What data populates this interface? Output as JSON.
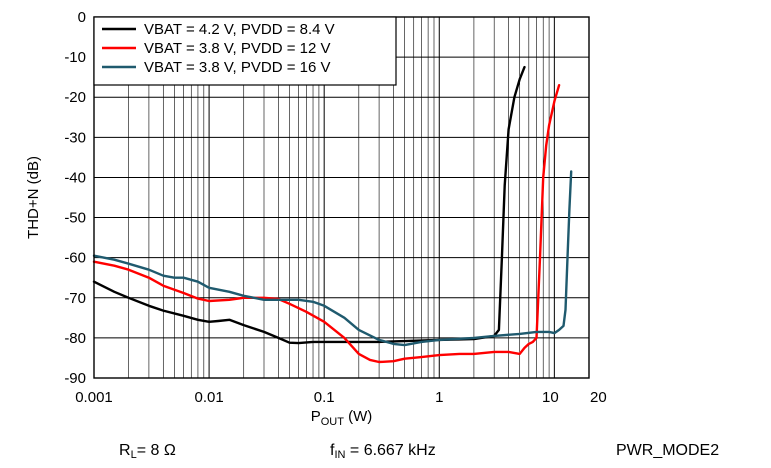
{
  "chart_data": {
    "type": "line",
    "xscale": "log",
    "xlim": [
      0.001,
      20
    ],
    "ylim": [
      -90,
      0
    ],
    "xlabel": "P",
    "xlabel_sub": "OUT",
    "xlabel_unit": " (W)",
    "ylabel": "THD+N (dB)",
    "x_ticks": [
      {
        "value": 0.001,
        "label": "0.001"
      },
      {
        "value": 0.01,
        "label": "0.01"
      },
      {
        "value": 0.1,
        "label": "0.1"
      },
      {
        "value": 1,
        "label": "1"
      },
      {
        "value": 10,
        "label": "10"
      },
      {
        "value": 20,
        "label": "20"
      }
    ],
    "y_ticks": [
      0,
      -10,
      -20,
      -30,
      -40,
      -50,
      -60,
      -70,
      -80,
      -90
    ],
    "grid": true,
    "legend_position": "top-left",
    "series": [
      {
        "name": "VBAT = 4.2 V, PVDD = 8.4 V",
        "color": "#000000",
        "points": [
          [
            0.001,
            -66
          ],
          [
            0.0015,
            -68.5
          ],
          [
            0.002,
            -70
          ],
          [
            0.003,
            -72
          ],
          [
            0.004,
            -73.2
          ],
          [
            0.006,
            -74.5
          ],
          [
            0.008,
            -75.5
          ],
          [
            0.01,
            -76
          ],
          [
            0.012,
            -75.8
          ],
          [
            0.015,
            -75.5
          ],
          [
            0.02,
            -76.8
          ],
          [
            0.03,
            -78.5
          ],
          [
            0.04,
            -80
          ],
          [
            0.05,
            -81.2
          ],
          [
            0.06,
            -81.3
          ],
          [
            0.08,
            -81
          ],
          [
            0.1,
            -81
          ],
          [
            0.15,
            -81
          ],
          [
            0.2,
            -81
          ],
          [
            0.3,
            -81
          ],
          [
            0.5,
            -80.8
          ],
          [
            1,
            -80.5
          ],
          [
            2,
            -80.3
          ],
          [
            3,
            -79.5
          ],
          [
            3.3,
            -78
          ],
          [
            3.5,
            -60
          ],
          [
            3.7,
            -42
          ],
          [
            4,
            -28
          ],
          [
            4.5,
            -20
          ],
          [
            5,
            -15.5
          ],
          [
            5.5,
            -12.5
          ]
        ]
      },
      {
        "name": "VBAT = 3.8 V, PVDD = 12 V",
        "color": "#ff0000",
        "points": [
          [
            0.001,
            -61
          ],
          [
            0.0015,
            -62
          ],
          [
            0.002,
            -63
          ],
          [
            0.003,
            -65
          ],
          [
            0.004,
            -67
          ],
          [
            0.006,
            -68.8
          ],
          [
            0.008,
            -70.2
          ],
          [
            0.01,
            -70.8
          ],
          [
            0.015,
            -70.5
          ],
          [
            0.02,
            -70
          ],
          [
            0.03,
            -70
          ],
          [
            0.04,
            -70.3
          ],
          [
            0.05,
            -71.5
          ],
          [
            0.07,
            -73.5
          ],
          [
            0.1,
            -76
          ],
          [
            0.15,
            -80
          ],
          [
            0.2,
            -84
          ],
          [
            0.25,
            -85.5
          ],
          [
            0.3,
            -86
          ],
          [
            0.4,
            -85.8
          ],
          [
            0.5,
            -85.2
          ],
          [
            0.7,
            -84.8
          ],
          [
            1,
            -84.3
          ],
          [
            1.5,
            -84
          ],
          [
            2,
            -84
          ],
          [
            3,
            -83.5
          ],
          [
            4,
            -83.5
          ],
          [
            5,
            -84
          ],
          [
            5.5,
            -82.5
          ],
          [
            6,
            -81.5
          ],
          [
            6.5,
            -81
          ],
          [
            7,
            -80
          ],
          [
            7.5,
            -60
          ],
          [
            8,
            -40
          ],
          [
            8.5,
            -32
          ],
          [
            9,
            -27
          ],
          [
            10,
            -21
          ],
          [
            11,
            -17
          ]
        ]
      },
      {
        "name": "VBAT = 3.8 V, PVDD = 16 V",
        "color": "#1f5a6e",
        "points": [
          [
            0.001,
            -59.5
          ],
          [
            0.0015,
            -60.5
          ],
          [
            0.002,
            -61.5
          ],
          [
            0.003,
            -63
          ],
          [
            0.004,
            -64.5
          ],
          [
            0.005,
            -65
          ],
          [
            0.006,
            -65
          ],
          [
            0.008,
            -66
          ],
          [
            0.01,
            -67.5
          ],
          [
            0.015,
            -68.5
          ],
          [
            0.02,
            -69.5
          ],
          [
            0.03,
            -70.5
          ],
          [
            0.04,
            -70.5
          ],
          [
            0.06,
            -70.5
          ],
          [
            0.08,
            -71
          ],
          [
            0.1,
            -72
          ],
          [
            0.15,
            -75
          ],
          [
            0.2,
            -78
          ],
          [
            0.3,
            -80.5
          ],
          [
            0.4,
            -81.5
          ],
          [
            0.5,
            -81.8
          ],
          [
            0.7,
            -81
          ],
          [
            1,
            -80.5
          ],
          [
            2,
            -80
          ],
          [
            3,
            -79.5
          ],
          [
            5,
            -79
          ],
          [
            7,
            -78.5
          ],
          [
            9,
            -78.5
          ],
          [
            10,
            -78.8
          ],
          [
            11,
            -78
          ],
          [
            12,
            -77
          ],
          [
            12.5,
            -73
          ],
          [
            13,
            -60
          ],
          [
            13.5,
            -48
          ],
          [
            14,
            -38.5
          ]
        ]
      }
    ]
  },
  "footer": {
    "rl_main": "R",
    "rl_sub": "L",
    "rl_value": "= 8 Ω",
    "fin_main": "f",
    "fin_sub": "IN",
    "fin_value": " = 6.667 kHz",
    "mode": "PWR_MODE2"
  }
}
